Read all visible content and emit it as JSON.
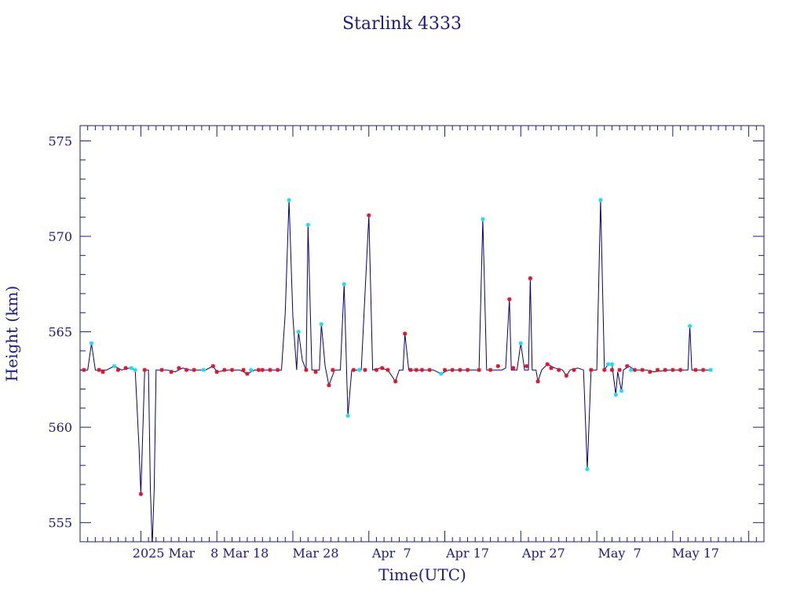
{
  "colors": {
    "axis": "#1a1a8c",
    "line": "#00008b",
    "marker_red": "#e8102a",
    "marker_cyan": "#19e0ef"
  },
  "chart_data": {
    "type": "line",
    "title": "Starlink 4333",
    "xlabel": "Time(UTC)",
    "ylabel": "Height (km)",
    "ylim": [
      554,
      575.8
    ],
    "xlim": [
      "2025-02-21",
      "2025-05-22"
    ],
    "y_ticks": [
      "555",
      "560",
      "565",
      "570",
      "575"
    ],
    "x_ticks": [
      "2025 Mar",
      "8 Mar 18",
      "Mar 28",
      "Apr  7",
      "Apr 17",
      "Apr 27",
      "May  7",
      "May 17"
    ],
    "grid": false,
    "series": [
      {
        "values": [
          [
            "2025-02-21T00:00",
            563.0
          ],
          [
            "2025-02-22T00:00",
            563.0
          ],
          [
            "2025-02-22T12:00",
            564.4
          ],
          [
            "2025-02-23T00:00",
            563.0
          ],
          [
            "2025-02-24T12:00",
            563.0
          ],
          [
            "2025-02-25T12:00",
            563.2
          ],
          [
            "2025-02-26T12:00",
            563.0
          ],
          [
            "2025-02-27T12:00",
            563.1
          ],
          [
            "2025-02-28T06:00",
            563.0
          ],
          [
            "2025-02-28T18:00",
            559.0
          ],
          [
            "2025-03-01T00:00",
            556.5
          ],
          [
            "2025-03-01T12:00",
            563.0
          ],
          [
            "2025-03-02T00:00",
            563.0
          ],
          [
            "2025-03-02T06:00",
            556.8
          ],
          [
            "2025-03-02T12:00",
            553.8
          ],
          [
            "2025-03-02T18:00",
            556.8
          ],
          [
            "2025-03-03T00:00",
            563.0
          ],
          [
            "2025-03-04T12:00",
            563.0
          ],
          [
            "2025-03-05T12:00",
            562.9
          ],
          [
            "2025-03-06T12:00",
            563.1
          ],
          [
            "2025-03-07T12:00",
            563.0
          ],
          [
            "2025-03-09T12:00",
            563.0
          ],
          [
            "2025-03-10T12:00",
            563.2
          ],
          [
            "2025-03-11T00:00",
            562.9
          ],
          [
            "2025-03-12T12:00",
            563.0
          ],
          [
            "2025-03-14T00:00",
            563.0
          ],
          [
            "2025-03-15T00:00",
            562.8
          ],
          [
            "2025-03-16T00:00",
            563.0
          ],
          [
            "2025-03-17T12:00",
            563.0
          ],
          [
            "2025-03-18T12:00",
            563.0
          ],
          [
            "2025-03-19T12:00",
            563.0
          ],
          [
            "2025-03-20T00:00",
            566.0
          ],
          [
            "2025-03-20T12:00",
            571.9
          ],
          [
            "2025-03-21T00:00",
            565.8
          ],
          [
            "2025-03-21T12:00",
            563.0
          ],
          [
            "2025-03-21T18:00",
            565.0
          ],
          [
            "2025-03-22T06:00",
            563.5
          ],
          [
            "2025-03-22T18:00",
            563.0
          ],
          [
            "2025-03-23T00:00",
            570.6
          ],
          [
            "2025-03-23T12:00",
            563.0
          ],
          [
            "2025-03-24T12:00",
            563.0
          ],
          [
            "2025-03-24T18:00",
            565.4
          ],
          [
            "2025-03-25T06:00",
            563.2
          ],
          [
            "2025-03-25T18:00",
            562.2
          ],
          [
            "2025-03-26T12:00",
            563.0
          ],
          [
            "2025-03-27T06:00",
            563.0
          ],
          [
            "2025-03-27T18:00",
            567.5
          ],
          [
            "2025-03-28T06:00",
            560.6
          ],
          [
            "2025-03-28T18:00",
            563.0
          ],
          [
            "2025-03-30T00:00",
            563.0
          ],
          [
            "2025-03-31T00:00",
            571.1
          ],
          [
            "2025-03-31T12:00",
            563.0
          ],
          [
            "2025-04-01T12:00",
            563.1
          ],
          [
            "2025-04-02T12:00",
            563.0
          ],
          [
            "2025-04-03T12:00",
            562.4
          ],
          [
            "2025-04-04T00:00",
            563.0
          ],
          [
            "2025-04-04T12:00",
            563.0
          ],
          [
            "2025-04-04T18:00",
            564.9
          ],
          [
            "2025-04-05T06:00",
            563.0
          ],
          [
            "2025-04-06T12:00",
            563.0
          ],
          [
            "2025-04-08T12:00",
            563.0
          ],
          [
            "2025-04-09T12:00",
            562.8
          ],
          [
            "2025-04-10T12:00",
            563.0
          ],
          [
            "2025-04-12T00:00",
            563.0
          ],
          [
            "2025-04-13T12:00",
            563.0
          ],
          [
            "2025-04-14T12:00",
            563.0
          ],
          [
            "2025-04-15T00:00",
            570.9
          ],
          [
            "2025-04-15T12:00",
            563.0
          ],
          [
            "2025-04-17T12:00",
            563.0
          ],
          [
            "2025-04-18T00:00",
            563.1
          ],
          [
            "2025-04-18T12:00",
            566.7
          ],
          [
            "2025-04-18T18:00",
            563.0
          ],
          [
            "2025-04-19T12:00",
            563.0
          ],
          [
            "2025-04-20T00:00",
            564.4
          ],
          [
            "2025-04-20T12:00",
            563.0
          ],
          [
            "2025-04-21T00:00",
            563.0
          ],
          [
            "2025-04-21T06:00",
            567.8
          ],
          [
            "2025-04-21T12:00",
            563.0
          ],
          [
            "2025-04-22T00:00",
            563.0
          ],
          [
            "2025-04-22T06:00",
            562.4
          ],
          [
            "2025-04-22T18:00",
            563.0
          ],
          [
            "2025-04-23T12:00",
            563.3
          ],
          [
            "2025-04-24T12:00",
            563.1
          ],
          [
            "2025-04-25T12:00",
            563.0
          ],
          [
            "2025-04-26T00:00",
            562.7
          ],
          [
            "2025-04-26T12:00",
            563.0
          ],
          [
            "2025-04-27T12:00",
            563.1
          ],
          [
            "2025-04-28T06:00",
            563.0
          ],
          [
            "2025-04-28T18:00",
            557.8
          ],
          [
            "2025-04-29T06:00",
            563.0
          ],
          [
            "2025-04-30T00:00",
            563.0
          ],
          [
            "2025-04-30T12:00",
            571.9
          ],
          [
            "2025-05-01T00:00",
            563.0
          ],
          [
            "2025-05-01T12:00",
            563.3
          ],
          [
            "2025-05-02T00:00",
            563.3
          ],
          [
            "2025-05-02T12:00",
            561.7
          ],
          [
            "2025-05-02T18:00",
            562.9
          ],
          [
            "2025-05-03T06:00",
            561.9
          ],
          [
            "2025-05-03T12:00",
            563.0
          ],
          [
            "2025-05-04T06:00",
            563.2
          ],
          [
            "2025-05-05T00:00",
            563.0
          ],
          [
            "2025-05-06T12:00",
            563.0
          ],
          [
            "2025-05-07T12:00",
            562.9
          ],
          [
            "2025-05-09T12:00",
            563.0
          ],
          [
            "2025-05-11T12:00",
            563.0
          ],
          [
            "2025-05-12T00:00",
            563.0
          ],
          [
            "2025-05-12T06:00",
            565.3
          ],
          [
            "2025-05-12T12:00",
            563.0
          ],
          [
            "2025-05-14T00:00",
            563.0
          ],
          [
            "2025-05-15T00:00",
            563.0
          ]
        ]
      }
    ],
    "markers_red": [
      [
        "2025-02-21T12:00",
        563.0
      ],
      [
        "2025-02-23T12:00",
        563.0
      ],
      [
        "2025-02-24T00:00",
        562.9
      ],
      [
        "2025-02-26T00:00",
        563.0
      ],
      [
        "2025-02-27T00:00",
        563.1
      ],
      [
        "2025-03-01T00:00",
        556.5
      ],
      [
        "2025-03-01T12:00",
        563.0
      ],
      [
        "2025-03-03T18:00",
        563.0
      ],
      [
        "2025-03-05T00:00",
        562.9
      ],
      [
        "2025-03-06T00:00",
        563.1
      ],
      [
        "2025-03-07T00:00",
        563.0
      ],
      [
        "2025-03-08T00:00",
        563.0
      ],
      [
        "2025-03-10T12:00",
        563.2
      ],
      [
        "2025-03-11T00:00",
        562.9
      ],
      [
        "2025-03-12T00:00",
        563.0
      ],
      [
        "2025-03-13T00:00",
        563.0
      ],
      [
        "2025-03-14T12:00",
        563.0
      ],
      [
        "2025-03-15T00:00",
        562.8
      ],
      [
        "2025-03-16T12:00",
        563.0
      ],
      [
        "2025-03-17T00:00",
        563.0
      ],
      [
        "2025-03-18T00:00",
        563.0
      ],
      [
        "2025-03-19T00:00",
        563.0
      ],
      [
        "2025-03-22T18:00",
        563.0
      ],
      [
        "2025-03-24T00:00",
        562.9
      ],
      [
        "2025-03-25T18:00",
        562.2
      ],
      [
        "2025-03-26T06:00",
        563.0
      ],
      [
        "2025-03-29T00:00",
        563.0
      ],
      [
        "2025-03-30T12:00",
        563.0
      ],
      [
        "2025-03-31T00:00",
        571.1
      ],
      [
        "2025-04-01T00:00",
        563.0
      ],
      [
        "2025-04-01T18:00",
        563.1
      ],
      [
        "2025-04-02T12:00",
        563.0
      ],
      [
        "2025-04-03T12:00",
        562.4
      ],
      [
        "2025-04-04T18:00",
        564.9
      ],
      [
        "2025-04-05T12:00",
        563.0
      ],
      [
        "2025-04-06T06:00",
        563.0
      ],
      [
        "2025-04-07T00:00",
        563.0
      ],
      [
        "2025-04-08T00:00",
        563.0
      ],
      [
        "2025-04-10T00:00",
        563.0
      ],
      [
        "2025-04-11T00:00",
        563.0
      ],
      [
        "2025-04-12T00:00",
        563.0
      ],
      [
        "2025-04-13T00:00",
        563.0
      ],
      [
        "2025-04-14T12:00",
        563.0
      ],
      [
        "2025-04-16T00:00",
        563.0
      ],
      [
        "2025-04-17T00:00",
        563.2
      ],
      [
        "2025-04-18T12:00",
        566.7
      ],
      [
        "2025-04-19T00:00",
        563.1
      ],
      [
        "2025-04-20T18:00",
        563.2
      ],
      [
        "2025-04-21T06:00",
        567.8
      ],
      [
        "2025-04-22T06:00",
        562.4
      ],
      [
        "2025-04-23T12:00",
        563.3
      ],
      [
        "2025-04-24T00:00",
        563.1
      ],
      [
        "2025-04-25T00:00",
        563.0
      ],
      [
        "2025-04-26T00:00",
        562.7
      ],
      [
        "2025-04-27T00:00",
        563.0
      ],
      [
        "2025-04-29T06:00",
        563.0
      ],
      [
        "2025-05-01T00:00",
        563.0
      ],
      [
        "2025-05-02T00:00",
        563.0
      ],
      [
        "2025-05-03T00:00",
        563.0
      ],
      [
        "2025-05-04T00:00",
        563.2
      ],
      [
        "2025-05-05T00:00",
        563.0
      ],
      [
        "2025-05-06T00:00",
        563.0
      ],
      [
        "2025-05-07T00:00",
        562.9
      ],
      [
        "2025-05-08T00:00",
        563.0
      ],
      [
        "2025-05-09T00:00",
        563.0
      ],
      [
        "2025-05-10T00:00",
        563.0
      ],
      [
        "2025-05-11T00:00",
        563.0
      ],
      [
        "2025-05-13T00:00",
        563.0
      ],
      [
        "2025-05-14T00:00",
        563.0
      ]
    ],
    "markers_cyan": [
      [
        "2025-02-22T12:00",
        564.4
      ],
      [
        "2025-02-25T12:00",
        563.2
      ],
      [
        "2025-02-27T18:00",
        563.1
      ],
      [
        "2025-02-28T06:00",
        563.0
      ],
      [
        "2025-03-02T12:00",
        553.8
      ],
      [
        "2025-03-09T06:00",
        563.0
      ],
      [
        "2025-03-15T12:00",
        563.0
      ],
      [
        "2025-03-20T12:00",
        571.9
      ],
      [
        "2025-03-21T18:00",
        565.0
      ],
      [
        "2025-03-23T00:00",
        570.6
      ],
      [
        "2025-03-24T18:00",
        565.4
      ],
      [
        "2025-03-27T18:00",
        567.5
      ],
      [
        "2025-03-28T06:00",
        560.6
      ],
      [
        "2025-03-29T18:00",
        563.0
      ],
      [
        "2025-04-09T12:00",
        562.8
      ],
      [
        "2025-04-15T00:00",
        570.9
      ],
      [
        "2025-04-20T00:00",
        564.4
      ],
      [
        "2025-04-28T18:00",
        557.8
      ],
      [
        "2025-04-30T12:00",
        571.9
      ],
      [
        "2025-05-01T12:00",
        563.3
      ],
      [
        "2025-05-02T00:00",
        563.3
      ],
      [
        "2025-05-02T12:00",
        561.7
      ],
      [
        "2025-05-03T06:00",
        561.9
      ],
      [
        "2025-05-04T12:00",
        563.0
      ],
      [
        "2025-05-12T06:00",
        565.3
      ],
      [
        "2025-05-15T00:00",
        563.0
      ]
    ]
  }
}
